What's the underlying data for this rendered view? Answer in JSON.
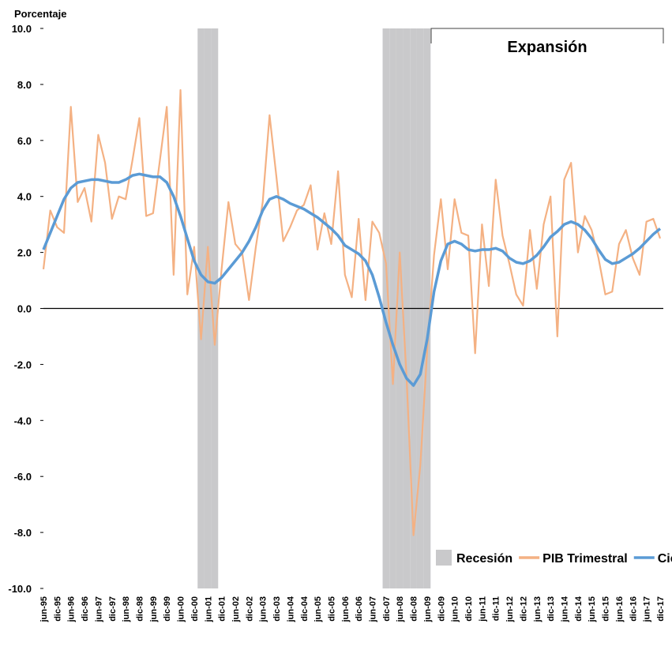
{
  "chart_data": {
    "type": "line",
    "y_label": "Porcentaje",
    "annotation": "Expansión",
    "categories": [
      "jun-95",
      null,
      "dic-95",
      null,
      "jun-96",
      null,
      "dic-96",
      null,
      "jun-97",
      null,
      "dic-97",
      null,
      "jun-98",
      null,
      "dic-98",
      null,
      "jun-99",
      null,
      "dic-99",
      null,
      "jun-00",
      null,
      "dic-00",
      null,
      "jun-01",
      null,
      "dic-01",
      null,
      "jun-02",
      null,
      "dic-02",
      null,
      "jun-03",
      null,
      "dic-03",
      null,
      "jun-04",
      null,
      "dic-04",
      null,
      "jun-05",
      null,
      "dic-05",
      null,
      "jun-06",
      null,
      "dic-06",
      null,
      "jun-07",
      null,
      "dic-07",
      null,
      "jun-08",
      null,
      "dic-08",
      null,
      "jun-09",
      null,
      "dic-09",
      null,
      "jun-10",
      null,
      "dic-10",
      null,
      "jun-11",
      null,
      "dic-11",
      null,
      "jun-12",
      null,
      "dic-12",
      null,
      "jun-13",
      null,
      "dic-13",
      null,
      "jun-14",
      null,
      "dic-14",
      null,
      "jun-15",
      null,
      "dic-15",
      null,
      "jun-16",
      null,
      "dic-16",
      null,
      "jun-17",
      null,
      "dic-17"
    ],
    "series": [
      {
        "name": "Recesión",
        "type": "bar",
        "color": "#c9c9cb",
        "values": [
          null,
          null,
          null,
          null,
          null,
          null,
          null,
          null,
          null,
          null,
          null,
          null,
          null,
          null,
          null,
          null,
          null,
          null,
          null,
          null,
          null,
          null,
          null,
          10,
          10,
          10,
          null,
          null,
          null,
          null,
          null,
          null,
          null,
          null,
          null,
          null,
          null,
          null,
          null,
          null,
          null,
          null,
          null,
          null,
          null,
          null,
          null,
          null,
          null,
          null,
          10,
          10,
          10,
          10,
          10,
          10,
          10,
          null,
          null,
          null,
          null,
          null,
          null,
          null,
          null,
          null,
          null,
          null,
          null,
          null,
          null,
          null,
          null,
          null,
          null,
          null,
          null,
          null,
          null,
          null,
          null,
          null,
          null,
          null,
          null,
          null,
          null,
          null,
          null,
          null,
          null
        ]
      },
      {
        "name": "PIB Trimestral",
        "type": "line",
        "color": "#f4b183",
        "values": [
          1.4,
          3.5,
          2.9,
          2.7,
          7.2,
          3.8,
          4.3,
          3.1,
          6.2,
          5.2,
          3.2,
          4.0,
          3.9,
          5.3,
          6.8,
          3.3,
          3.4,
          5.3,
          7.2,
          1.2,
          7.8,
          0.5,
          2.2,
          -1.1,
          2.2,
          -1.3,
          1.4,
          3.8,
          2.3,
          2.0,
          0.3,
          2.2,
          3.8,
          6.9,
          4.7,
          2.4,
          2.9,
          3.5,
          3.7,
          4.4,
          2.1,
          3.4,
          2.3,
          4.9,
          1.2,
          0.4,
          3.2,
          0.3,
          3.1,
          2.7,
          1.6,
          -2.7,
          2.0,
          -2.5,
          -8.1,
          -5.6,
          -1.5,
          1.9,
          3.9,
          1.4,
          3.9,
          2.7,
          2.6,
          -1.6,
          3.0,
          0.8,
          4.6,
          2.6,
          1.6,
          0.5,
          0.1,
          2.8,
          0.7,
          3.0,
          4.0,
          -1.0,
          4.6,
          5.2,
          2.0,
          3.3,
          2.8,
          1.8,
          0.5,
          0.6,
          2.3,
          2.8,
          1.8,
          1.2,
          3.1,
          3.2,
          2.5
        ]
      },
      {
        "name": "Ciclo",
        "type": "line",
        "color": "#5b9bd5",
        "values": [
          2.1,
          2.7,
          3.3,
          3.9,
          4.3,
          4.5,
          4.55,
          4.6,
          4.6,
          4.55,
          4.5,
          4.5,
          4.6,
          4.75,
          4.8,
          4.75,
          4.7,
          4.7,
          4.5,
          4.0,
          3.3,
          2.5,
          1.7,
          1.2,
          0.95,
          0.9,
          1.1,
          1.4,
          1.7,
          2.0,
          2.4,
          2.9,
          3.5,
          3.9,
          4.0,
          3.9,
          3.75,
          3.65,
          3.55,
          3.4,
          3.25,
          3.05,
          2.85,
          2.6,
          2.25,
          2.1,
          1.95,
          1.7,
          1.2,
          0.4,
          -0.5,
          -1.3,
          -2.0,
          -2.5,
          -2.75,
          -2.35,
          -1.1,
          0.6,
          1.7,
          2.3,
          2.4,
          2.3,
          2.1,
          2.05,
          2.1,
          2.1,
          2.15,
          2.05,
          1.8,
          1.65,
          1.6,
          1.7,
          1.9,
          2.2,
          2.55,
          2.75,
          3.0,
          3.1,
          3.0,
          2.8,
          2.5,
          2.1,
          1.75,
          1.6,
          1.65,
          1.8,
          1.95,
          2.15,
          2.4,
          2.65,
          2.85
        ]
      }
    ],
    "ylim": [
      -10,
      10
    ],
    "yticks": [
      {
        "value": -10,
        "label": "-10.0"
      },
      {
        "value": -8,
        "label": "-8.0"
      },
      {
        "value": -6,
        "label": "-6.0"
      },
      {
        "value": -4,
        "label": "-4.0"
      },
      {
        "value": -2,
        "label": "-2.0"
      },
      {
        "value": 0,
        "label": "0.0"
      },
      {
        "value": 2,
        "label": "2.0"
      },
      {
        "value": 4,
        "label": "4.0"
      },
      {
        "value": 6,
        "label": "6.0"
      },
      {
        "value": 8,
        "label": "8.0"
      },
      {
        "value": 10,
        "label": "10.0"
      }
    ],
    "legend": "bottom-right"
  }
}
